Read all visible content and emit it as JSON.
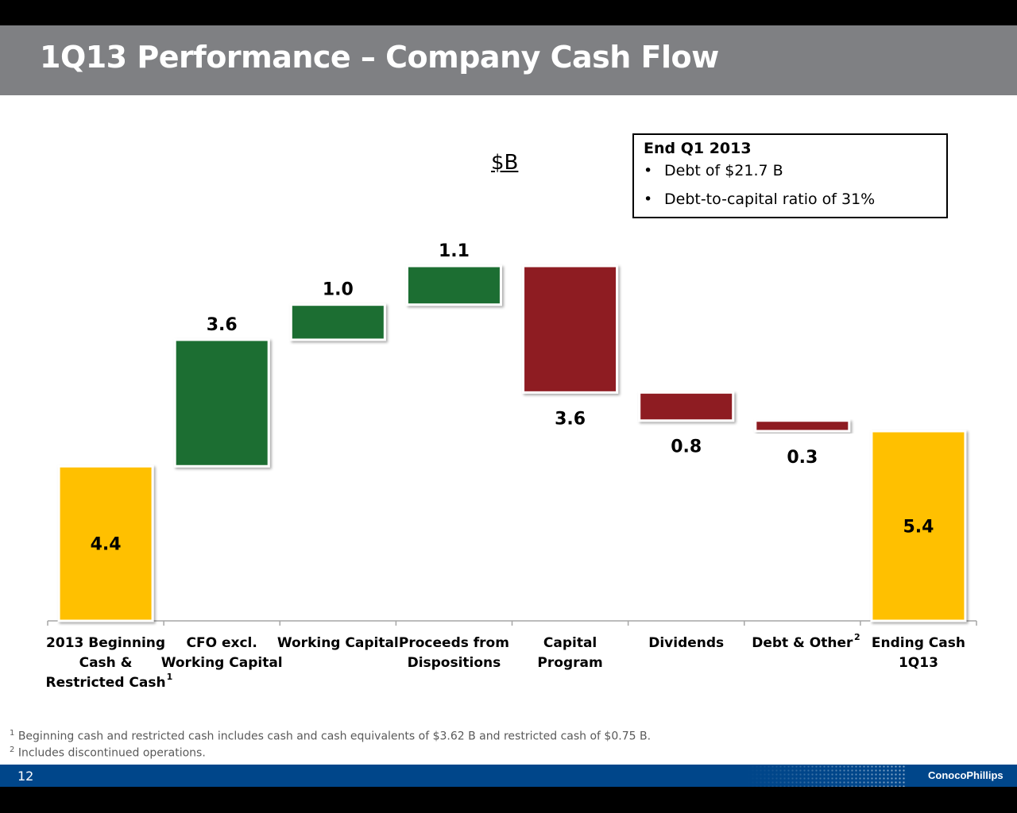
{
  "title": "1Q13 Performance – Company Cash Flow",
  "unit_label": "$B",
  "note": {
    "title": "End Q1 2013",
    "items": [
      "Debt of $21.7 B",
      "Debt-to-capital ratio of 31%"
    ]
  },
  "chart_data": {
    "type": "bar",
    "subtype": "waterfall",
    "categories": [
      [
        "2013 Beginning",
        "Cash &",
        "Restricted Cash"
      ],
      [
        "CFO excl.",
        "Working Capital"
      ],
      [
        "Working Capital"
      ],
      [
        "Proceeds from",
        "Dispositions"
      ],
      [
        "Capital",
        "Program"
      ],
      [
        "Dividends"
      ],
      [
        "Debt & Other"
      ],
      [
        "Ending Cash",
        "1Q13"
      ]
    ],
    "category_superscripts": [
      "1",
      "",
      "",
      "",
      "",
      "",
      "2",
      ""
    ],
    "values": [
      4.4,
      3.6,
      1.0,
      1.1,
      -3.6,
      -0.8,
      -0.3,
      5.4
    ],
    "value_labels": [
      "4.4",
      "3.6",
      "1.0",
      "1.1",
      "3.6",
      "0.8",
      "0.3",
      "5.4"
    ],
    "kinds": [
      "total",
      "delta",
      "delta",
      "delta",
      "delta",
      "delta",
      "delta",
      "total"
    ],
    "colors": {
      "total": "#ffc000",
      "increase": "#1e6e30",
      "decrease": "#8e1a22",
      "axis": "#a6a6a6"
    },
    "ylim": [
      0,
      10.1
    ],
    "grid": false,
    "legend": "none"
  },
  "footnotes": [
    {
      "mark": "1",
      "text": "Beginning cash and restricted cash includes cash and cash equivalents of $3.62 B and restricted cash of $0.75 B."
    },
    {
      "mark": "2",
      "text": "Includes discontinued operations."
    }
  ],
  "footer": {
    "page_number": "12",
    "logo": "ConocoPhillips"
  }
}
